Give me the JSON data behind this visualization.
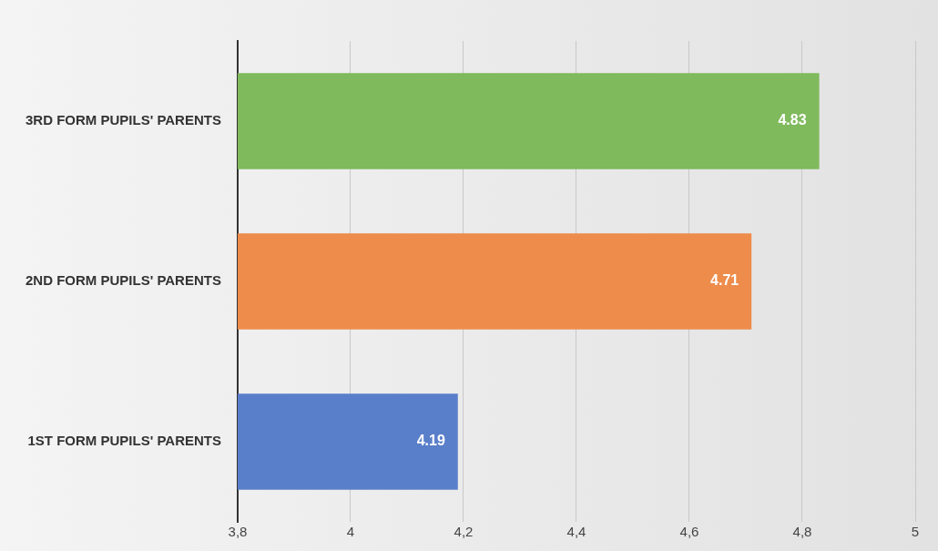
{
  "chart_data": {
    "type": "bar",
    "orientation": "horizontal",
    "categories": [
      "3RD FORM PUPILS' PARENTS",
      "2ND FORM PUPILS' PARENTS",
      "1ST FORM PUPILS' PARENTS"
    ],
    "values": [
      4.83,
      4.71,
      4.19
    ],
    "colors": [
      "#7fba5c",
      "#ee8c4c",
      "#5a7fca"
    ],
    "xlim": [
      3.8,
      5
    ],
    "xticks": [
      {
        "value": 3.8,
        "label": "3,8"
      },
      4,
      {
        "value": 4.2,
        "label": "4,2"
      },
      {
        "value": 4.4,
        "label": "4,4"
      },
      {
        "value": 4.6,
        "label": "4,6"
      },
      {
        "value": 4.8,
        "label": "4,8"
      },
      5
    ],
    "grid": "x",
    "data_labels": true,
    "legend": false
  }
}
